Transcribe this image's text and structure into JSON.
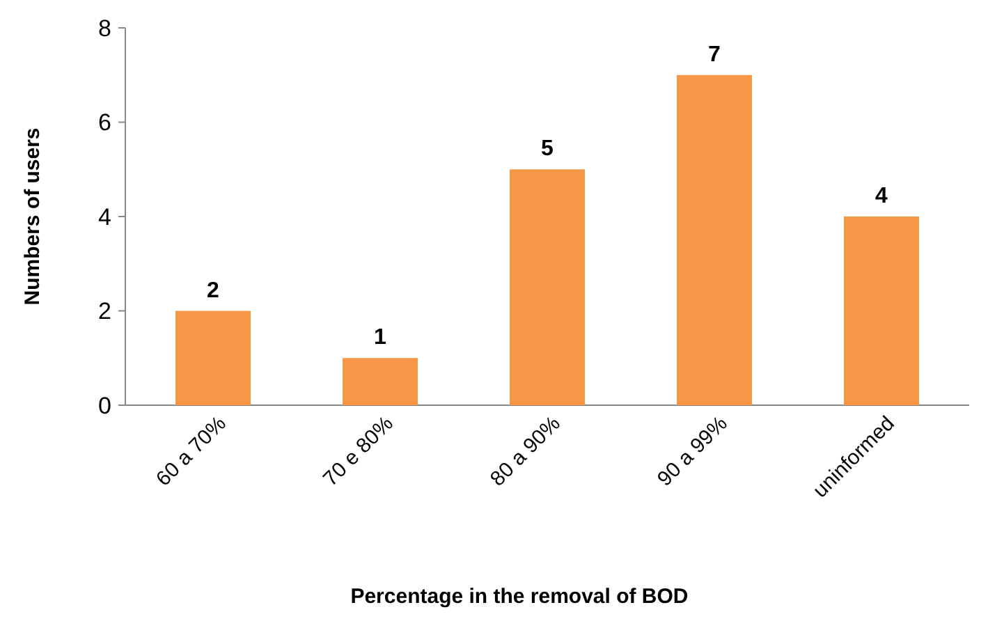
{
  "chart_data": {
    "type": "bar",
    "xlabel": "Percentage in the removal of BOD",
    "ylabel": "Numbers of users",
    "categories": [
      "60 a 70%",
      "70 e 80%",
      "80 a 90%",
      "90 a 99%",
      "uninformed"
    ],
    "values": [
      2,
      1,
      5,
      7,
      4
    ],
    "color": "#f79646",
    "data_labels": true,
    "ylim": [
      0,
      8
    ],
    "yticks": [
      0,
      2,
      4,
      6,
      8
    ]
  }
}
